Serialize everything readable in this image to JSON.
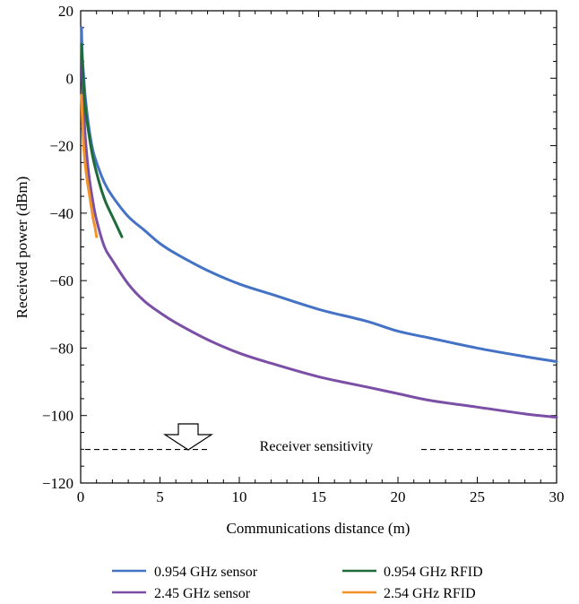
{
  "chart_data": {
    "type": "line",
    "xlabel": "Communications distance (m)",
    "ylabel": "Received power (dBm)",
    "xlim": [
      0,
      30
    ],
    "ylim": [
      -120,
      20
    ],
    "x_ticks": [
      0,
      5,
      10,
      15,
      20,
      25,
      30
    ],
    "y_ticks": [
      20,
      0,
      -20,
      -40,
      -60,
      -80,
      -100,
      -120
    ],
    "x_tick_labels": [
      "0",
      "5",
      "10",
      "15",
      "20",
      "25",
      "30"
    ],
    "y_tick_labels": [
      "20",
      "0",
      "−20",
      "−40",
      "−60",
      "−80",
      "−100",
      "−120"
    ],
    "grid": false,
    "legend_placement": "below",
    "series": [
      {
        "name": "0.954 GHz sensor",
        "color": "#4472c4",
        "x": [
          0.05,
          0.1,
          0.2,
          0.3,
          0.5,
          0.75,
          1,
          1.5,
          2,
          3,
          4,
          5,
          6,
          8,
          10,
          12,
          15,
          18,
          20,
          22,
          25,
          28,
          30
        ],
        "y": [
          15,
          7,
          0,
          -6,
          -14,
          -21,
          -25,
          -31,
          -35,
          -41,
          -45,
          -49,
          -52,
          -57,
          -61,
          -64,
          -68.5,
          -72,
          -75,
          -77,
          -80,
          -82.5,
          -84
        ]
      },
      {
        "name": "2.45 GHz sensor",
        "color": "#7b4fa6",
        "x": [
          0.05,
          0.1,
          0.2,
          0.3,
          0.5,
          0.75,
          1,
          1.5,
          2,
          3,
          4,
          5,
          6,
          8,
          10,
          12,
          15,
          18,
          20,
          22,
          25,
          28,
          30
        ],
        "y": [
          15,
          0,
          -10,
          -18,
          -28,
          -36,
          -42,
          -50,
          -54,
          -61,
          -66,
          -69.5,
          -72.5,
          -77.5,
          -81.5,
          -84.5,
          -88.5,
          -91.5,
          -93.5,
          -95.5,
          -97.5,
          -99.5,
          -100.5
        ]
      },
      {
        "name": "0.954 GHz RFID",
        "color": "#1e6b3a",
        "x": [
          0.05,
          0.1,
          0.2,
          0.3,
          0.5,
          0.75,
          1,
          1.3,
          1.6,
          2,
          2.3,
          2.6
        ],
        "y": [
          10,
          5,
          -3,
          -9,
          -16,
          -23,
          -28,
          -33,
          -37,
          -41,
          -44,
          -47
        ]
      },
      {
        "name": "2.54 GHz RFID",
        "color": "#f4922a",
        "x": [
          0.05,
          0.1,
          0.15,
          0.2,
          0.3,
          0.4,
          0.5,
          0.6,
          0.7,
          0.8,
          0.9,
          1.0
        ],
        "y": [
          -5,
          -12,
          -17,
          -21,
          -26,
          -30,
          -33,
          -36,
          -39,
          -42,
          -44,
          -47
        ]
      }
    ],
    "annotations": [
      {
        "text": "Receiver sensitivity",
        "y": -110,
        "style": "dashed"
      }
    ]
  }
}
